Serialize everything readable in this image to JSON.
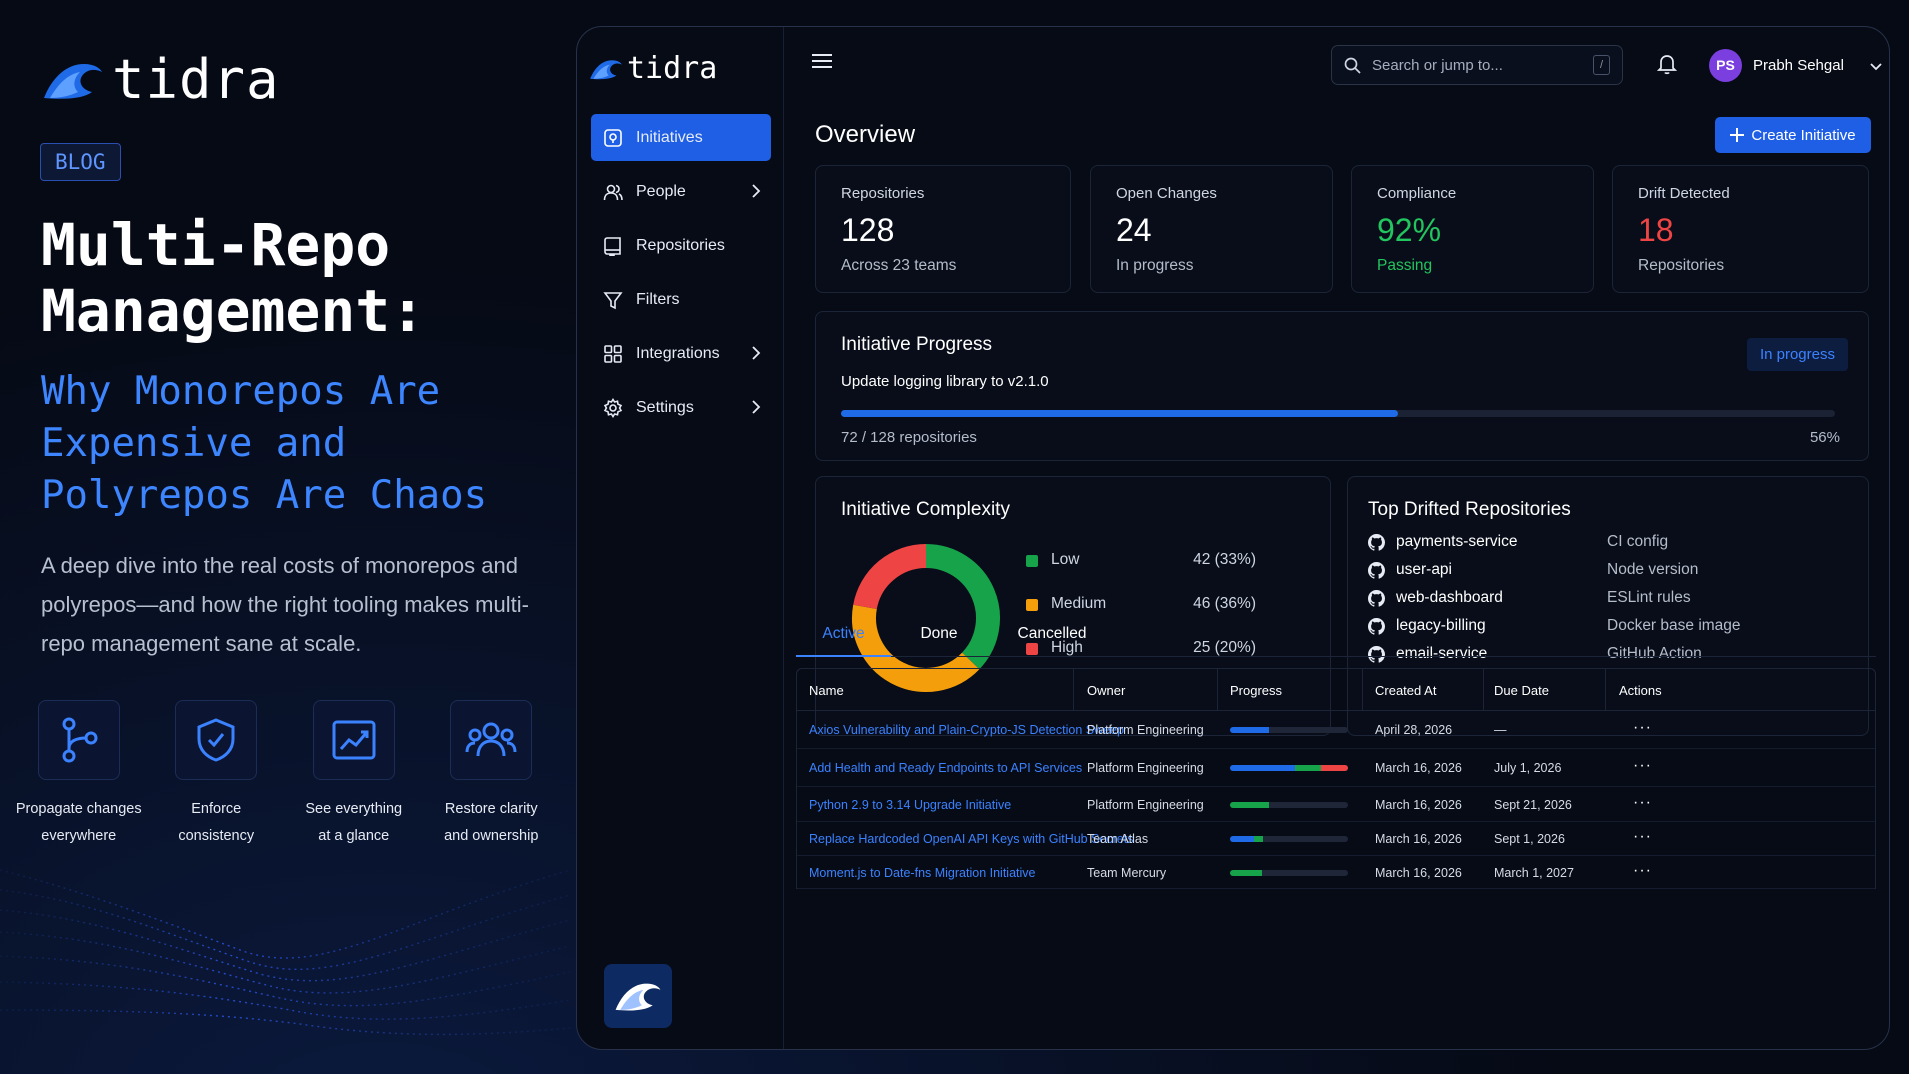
{
  "promo": {
    "brand": "tidra",
    "badge": "BLOG",
    "headline": "Multi-Repo Management:",
    "subheadline": "Why Monorepos Are Expensive and Polyrepos Are Chaos",
    "lead": "A deep dive into the real costs of monorepos and polyrepos—and how the right tooling makes multi-repo management sane at scale.",
    "features": [
      {
        "icon": "branch-icon",
        "line1": "Propagate changes",
        "line2": "everywhere"
      },
      {
        "icon": "shield-icon",
        "line1": "Enforce",
        "line2": "consistency"
      },
      {
        "icon": "chart-icon",
        "line1": "See everything",
        "line2": "at a glance"
      },
      {
        "icon": "team-icon",
        "line1": "Restore clarity",
        "line2": "and ownership"
      }
    ]
  },
  "app": {
    "brand": "tidra",
    "nav": [
      {
        "label": "Initiatives",
        "icon": "initiatives-icon",
        "active": true
      },
      {
        "label": "People",
        "icon": "people-icon",
        "chevron": true
      },
      {
        "label": "Repositories",
        "icon": "repositories-icon"
      },
      {
        "label": "Filters",
        "icon": "filter-icon"
      },
      {
        "label": "Integrations",
        "icon": "grid-icon",
        "chevron": true
      },
      {
        "label": "Settings",
        "icon": "gear-icon",
        "chevron": true
      }
    ],
    "search": {
      "placeholder": "Search or jump to...",
      "shortcut": "/"
    },
    "user": {
      "initials": "PS",
      "name": "Prabh Sehgal"
    },
    "page_title": "Overview",
    "create_button": "Create Initiative",
    "stats": [
      {
        "label": "Repositories",
        "value": "128",
        "sub": "Across 23 teams",
        "color": "#ffffff",
        "subcolor": "#b5bdcb"
      },
      {
        "label": "Open Changes",
        "value": "24",
        "sub": "In progress",
        "color": "#ffffff",
        "subcolor": "#b5bdcb"
      },
      {
        "label": "Compliance",
        "value": "92%",
        "sub": "Passing",
        "color": "#22c55e",
        "subcolor": "#22c55e"
      },
      {
        "label": "Drift Detected",
        "value": "18",
        "sub": "Repositories",
        "color": "#ef4444",
        "subcolor": "#b5bdcb"
      }
    ],
    "progress": {
      "title": "Initiative Progress",
      "status": "In progress",
      "task": "Update logging library to v2.1.0",
      "done_label": "72 / 128 repositories",
      "percent_label": "56%",
      "fraction": 0.56
    },
    "complexity": {
      "title": "Initiative Complexity",
      "items": [
        {
          "label": "Low",
          "value": "42 (33%)",
          "count": 42,
          "color": "#16a34a"
        },
        {
          "label": "Medium",
          "value": "46 (36%)",
          "count": 46,
          "color": "#f59e0b"
        },
        {
          "label": "High",
          "value": "25 (20%)",
          "count": 25,
          "color": "#ef4444"
        }
      ]
    },
    "drift": {
      "title": "Top Drifted Repositories",
      "repos": [
        {
          "name": "payments-service",
          "reason": "CI config"
        },
        {
          "name": "user-api",
          "reason": "Node version"
        },
        {
          "name": "web-dashboard",
          "reason": "ESLint rules"
        },
        {
          "name": "legacy-billing",
          "reason": "Docker base image"
        },
        {
          "name": "email-service",
          "reason": "GitHub Action"
        }
      ]
    },
    "tabs": [
      "Active",
      "Done",
      "Cancelled"
    ],
    "table": {
      "headers": [
        "Name",
        "Owner",
        "Progress",
        "Created At",
        "Due Date",
        "Actions"
      ],
      "rows": [
        {
          "name": "Axios Vulnerability and Plain-Crypto-JS Detection Sweep",
          "owner": "Platform Engineering",
          "progress": [
            {
              "v": 0.33,
              "c": "#1f6ae6"
            }
          ],
          "created": "April 28, 2026",
          "due": "—",
          "actions": "···"
        },
        {
          "name": "Add Health and Ready Endpoints to API Services",
          "owner": "Platform Engineering",
          "progress": [
            {
              "v": 0.55,
              "c": "#1f6ae6"
            },
            {
              "v": 0.22,
              "c": "#16a34a"
            },
            {
              "v": 0.23,
              "c": "#ef4444"
            }
          ],
          "created": "March 16, 2026",
          "due": "July 1, 2026",
          "actions": "···"
        },
        {
          "name": "Python 2.9 to 3.14 Upgrade Initiative",
          "owner": "Platform Engineering",
          "progress": [
            {
              "v": 0.33,
              "c": "#16a34a"
            }
          ],
          "created": "March 16, 2026",
          "due": "Sept 21, 2026",
          "actions": "···"
        },
        {
          "name": "Replace Hardcoded OpenAI API Keys with GitHub Secrets",
          "owner": "Team Atlas",
          "progress": [
            {
              "v": 0.2,
              "c": "#1f6ae6"
            },
            {
              "v": 0.08,
              "c": "#16a34a"
            }
          ],
          "created": "March 16, 2026",
          "due": "Sept 1, 2026",
          "actions": "···"
        },
        {
          "name": "Moment.js to Date-fns Migration Initiative",
          "owner": "Team Mercury",
          "progress": [
            {
              "v": 0.27,
              "c": "#16a34a"
            }
          ],
          "created": "March 16, 2026",
          "due": "March 1, 2027",
          "actions": "···"
        }
      ]
    }
  }
}
